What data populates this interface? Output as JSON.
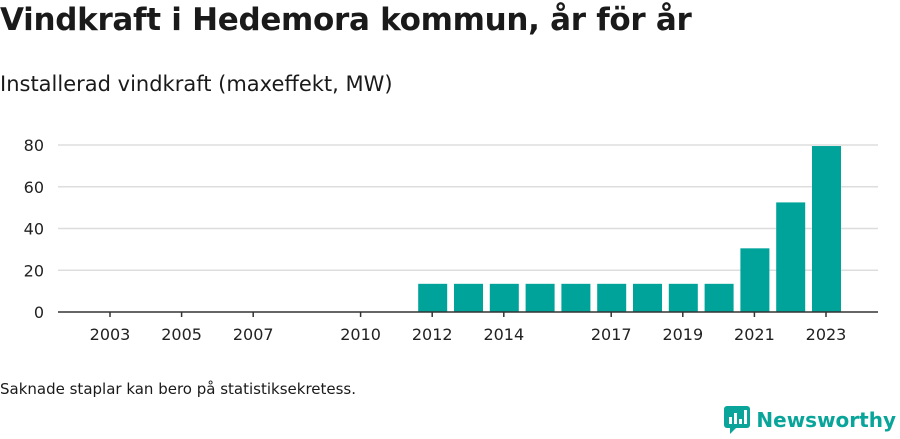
{
  "header": {
    "title": "Vindkraft i Hedemora kommun, år för år",
    "subtitle": "Installerad vindkraft (maxeffekt, MW)"
  },
  "footer": {
    "note": "Saknade staplar kan bero på statistiksekretess.",
    "brand": "Newsworthy"
  },
  "colors": {
    "bar": "#00a39a",
    "grid": "#dddddd",
    "axis": "#333333",
    "brand": "#0aa59a"
  },
  "chart_data": {
    "type": "bar",
    "categories": [
      "2003",
      "2004",
      "2005",
      "2006",
      "2007",
      "2008",
      "2009",
      "2010",
      "2011",
      "2012",
      "2013",
      "2014",
      "2015",
      "2016",
      "2017",
      "2018",
      "2019",
      "2020",
      "2021",
      "2022",
      "2023"
    ],
    "values": [
      0,
      0,
      0,
      0,
      0,
      0,
      0,
      0,
      0,
      13.5,
      13.5,
      13.5,
      13.5,
      13.5,
      13.5,
      13.5,
      13.5,
      13.5,
      30.5,
      52.5,
      79.5
    ],
    "x_tick_labels": [
      "2003",
      "2005",
      "2007",
      "2010",
      "2012",
      "2014",
      "2017",
      "2019",
      "2021",
      "2023"
    ],
    "y_ticks": [
      0,
      20,
      40,
      60,
      80
    ],
    "ylim": [
      0,
      80
    ],
    "grid": true,
    "legend": "none"
  }
}
